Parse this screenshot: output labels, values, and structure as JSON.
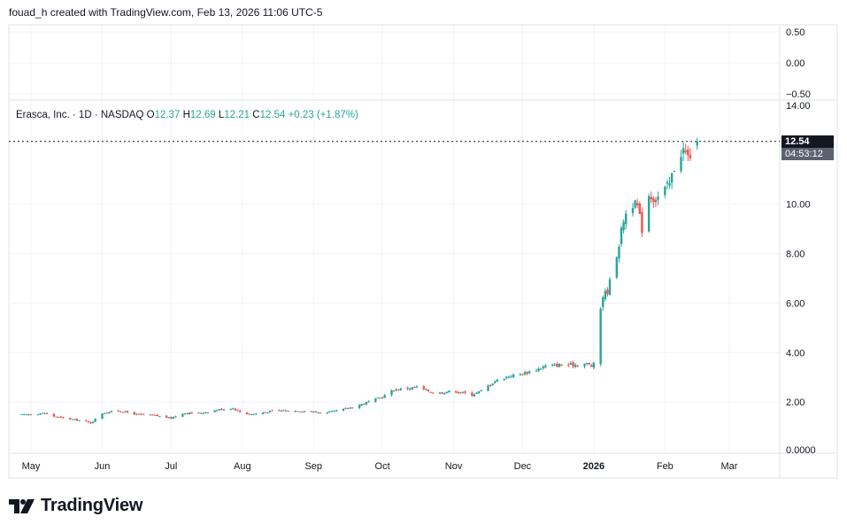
{
  "header": {
    "text": "fouad_h created with TradingView.com, Feb 13, 2026 11:06 UTC-5"
  },
  "info": {
    "name": "Erasca, Inc. · 1D · NASDAQ",
    "o_label": "O",
    "o_value": "12.37",
    "h_label": "H",
    "h_value": "12.69",
    "l_label": "L",
    "l_value": "12.21",
    "c_label": "C",
    "c_value": "12.54",
    "change": "+0.23 (+1.87%)"
  },
  "price_badge": {
    "value": "12.54",
    "countdown": "04:53:12"
  },
  "logo": {
    "text": "TradingView"
  },
  "colors": {
    "up": "#26a69a",
    "down": "#ef5350",
    "grid": "#f0f3fa",
    "axis_text": "#131722"
  },
  "chart_data": {
    "type": "candlestick",
    "upper_pane": {
      "ylim": [
        -0.5,
        0.5
      ],
      "ticks": [
        "0.50",
        "0.00",
        "−0.50"
      ]
    },
    "main_pane": {
      "ylim": [
        0,
        14
      ],
      "ticks": [
        {
          "value": 14,
          "label": "14.00"
        },
        {
          "value": 10,
          "label": "10.00"
        },
        {
          "value": 8,
          "label": "8.00"
        },
        {
          "value": 6,
          "label": "6.00"
        },
        {
          "value": 4,
          "label": "4.00"
        },
        {
          "value": 2,
          "label": "2.00"
        },
        {
          "value": 0,
          "label": "0.0000"
        }
      ],
      "last_price": 12.54
    },
    "x_axis": {
      "range": [
        "2025-04-28",
        "2026-03-23"
      ],
      "labels": [
        {
          "label": "May",
          "day": 4,
          "bold": false
        },
        {
          "label": "Jun",
          "day": 35,
          "bold": false
        },
        {
          "label": "Jul",
          "day": 65,
          "bold": false
        },
        {
          "label": "Aug",
          "day": 96,
          "bold": false
        },
        {
          "label": "Sep",
          "day": 127,
          "bold": false
        },
        {
          "label": "Oct",
          "day": 157,
          "bold": false
        },
        {
          "label": "Nov",
          "day": 188,
          "bold": false
        },
        {
          "label": "Dec",
          "day": 218,
          "bold": false
        },
        {
          "label": "2026",
          "day": 249,
          "bold": true
        },
        {
          "label": "Feb",
          "day": 280,
          "bold": false
        },
        {
          "label": "Mar",
          "day": 308,
          "bold": false
        }
      ]
    },
    "close_anchors": [
      [
        0,
        1.48
      ],
      [
        10,
        1.55
      ],
      [
        14,
        1.42
      ],
      [
        20,
        1.32
      ],
      [
        26,
        1.25
      ],
      [
        30,
        1.15
      ],
      [
        35,
        1.55
      ],
      [
        42,
        1.65
      ],
      [
        50,
        1.5
      ],
      [
        58,
        1.45
      ],
      [
        65,
        1.35
      ],
      [
        70,
        1.55
      ],
      [
        78,
        1.55
      ],
      [
        86,
        1.7
      ],
      [
        92,
        1.75
      ],
      [
        96,
        1.55
      ],
      [
        100,
        1.5
      ],
      [
        110,
        1.65
      ],
      [
        120,
        1.65
      ],
      [
        127,
        1.6
      ],
      [
        132,
        1.55
      ],
      [
        140,
        1.7
      ],
      [
        146,
        1.85
      ],
      [
        152,
        2.05
      ],
      [
        157,
        2.2
      ],
      [
        162,
        2.5
      ],
      [
        168,
        2.55
      ],
      [
        172,
        2.6
      ],
      [
        180,
        2.35
      ],
      [
        188,
        2.45
      ],
      [
        196,
        2.3
      ],
      [
        200,
        2.45
      ],
      [
        206,
        2.85
      ],
      [
        212,
        3.05
      ],
      [
        218,
        3.15
      ],
      [
        222,
        3.25
      ],
      [
        228,
        3.45
      ],
      [
        234,
        3.5
      ],
      [
        240,
        3.5
      ],
      [
        246,
        3.55
      ],
      [
        248,
        3.45
      ],
      [
        250,
        3.6
      ],
      [
        252,
        5.8
      ],
      [
        253,
        6.3
      ],
      [
        255,
        6.5
      ],
      [
        258,
        7.6
      ],
      [
        260,
        8.4
      ],
      [
        262,
        9.4
      ],
      [
        265,
        10.1
      ],
      [
        268,
        9.9
      ],
      [
        270,
        9.0
      ],
      [
        273,
        10.4
      ],
      [
        276,
        10.2
      ],
      [
        279,
        10.5
      ],
      [
        282,
        10.8
      ],
      [
        284,
        11.5
      ],
      [
        286,
        12.0
      ],
      [
        288,
        12.2
      ],
      [
        290,
        11.9
      ],
      [
        292,
        12.1
      ],
      [
        294,
        12.54
      ]
    ]
  }
}
